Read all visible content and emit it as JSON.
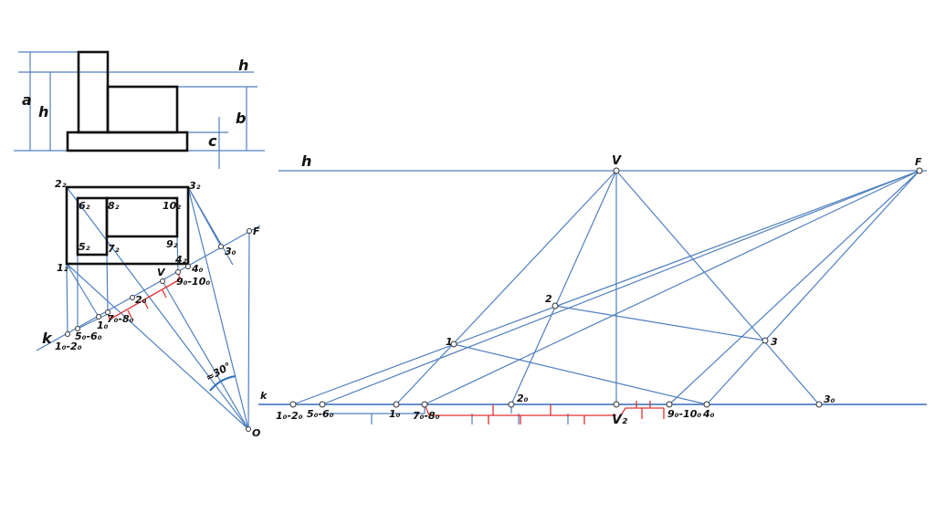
{
  "front_view": {
    "dim_a": "a",
    "dim_h": "h",
    "dim_b": "b",
    "dim_c": "c",
    "horizon": "h"
  },
  "plan_view": {
    "corners": [
      "2₂",
      "3₂",
      "1₂",
      "4₂"
    ],
    "inner": [
      "6₂",
      "8₂",
      "10₂",
      "5₂",
      "7₂",
      "9₂"
    ],
    "k": "k",
    "F": "F",
    "V": "V",
    "O": "O",
    "angle": "≈30°",
    "axis_points": [
      "1₀-2₀",
      "5₀-6₀",
      "1₀",
      "7₀-8₀",
      "2₀",
      "9₀-10₀",
      "4₀",
      "3₀"
    ]
  },
  "perspective": {
    "horizon": "h",
    "V": "V",
    "F": "F",
    "k": "k",
    "points": [
      "1",
      "2",
      "3"
    ],
    "axis_points": [
      "1₀-2₀",
      "5₀-6₀",
      "1₀",
      "7₀-8₀",
      "2₀",
      "V₂",
      "9₀-10₀",
      "4₀",
      "3₀"
    ]
  },
  "colors": {
    "construction": "#4f7fbf",
    "outline": "#111111",
    "measure": "#e03030"
  }
}
